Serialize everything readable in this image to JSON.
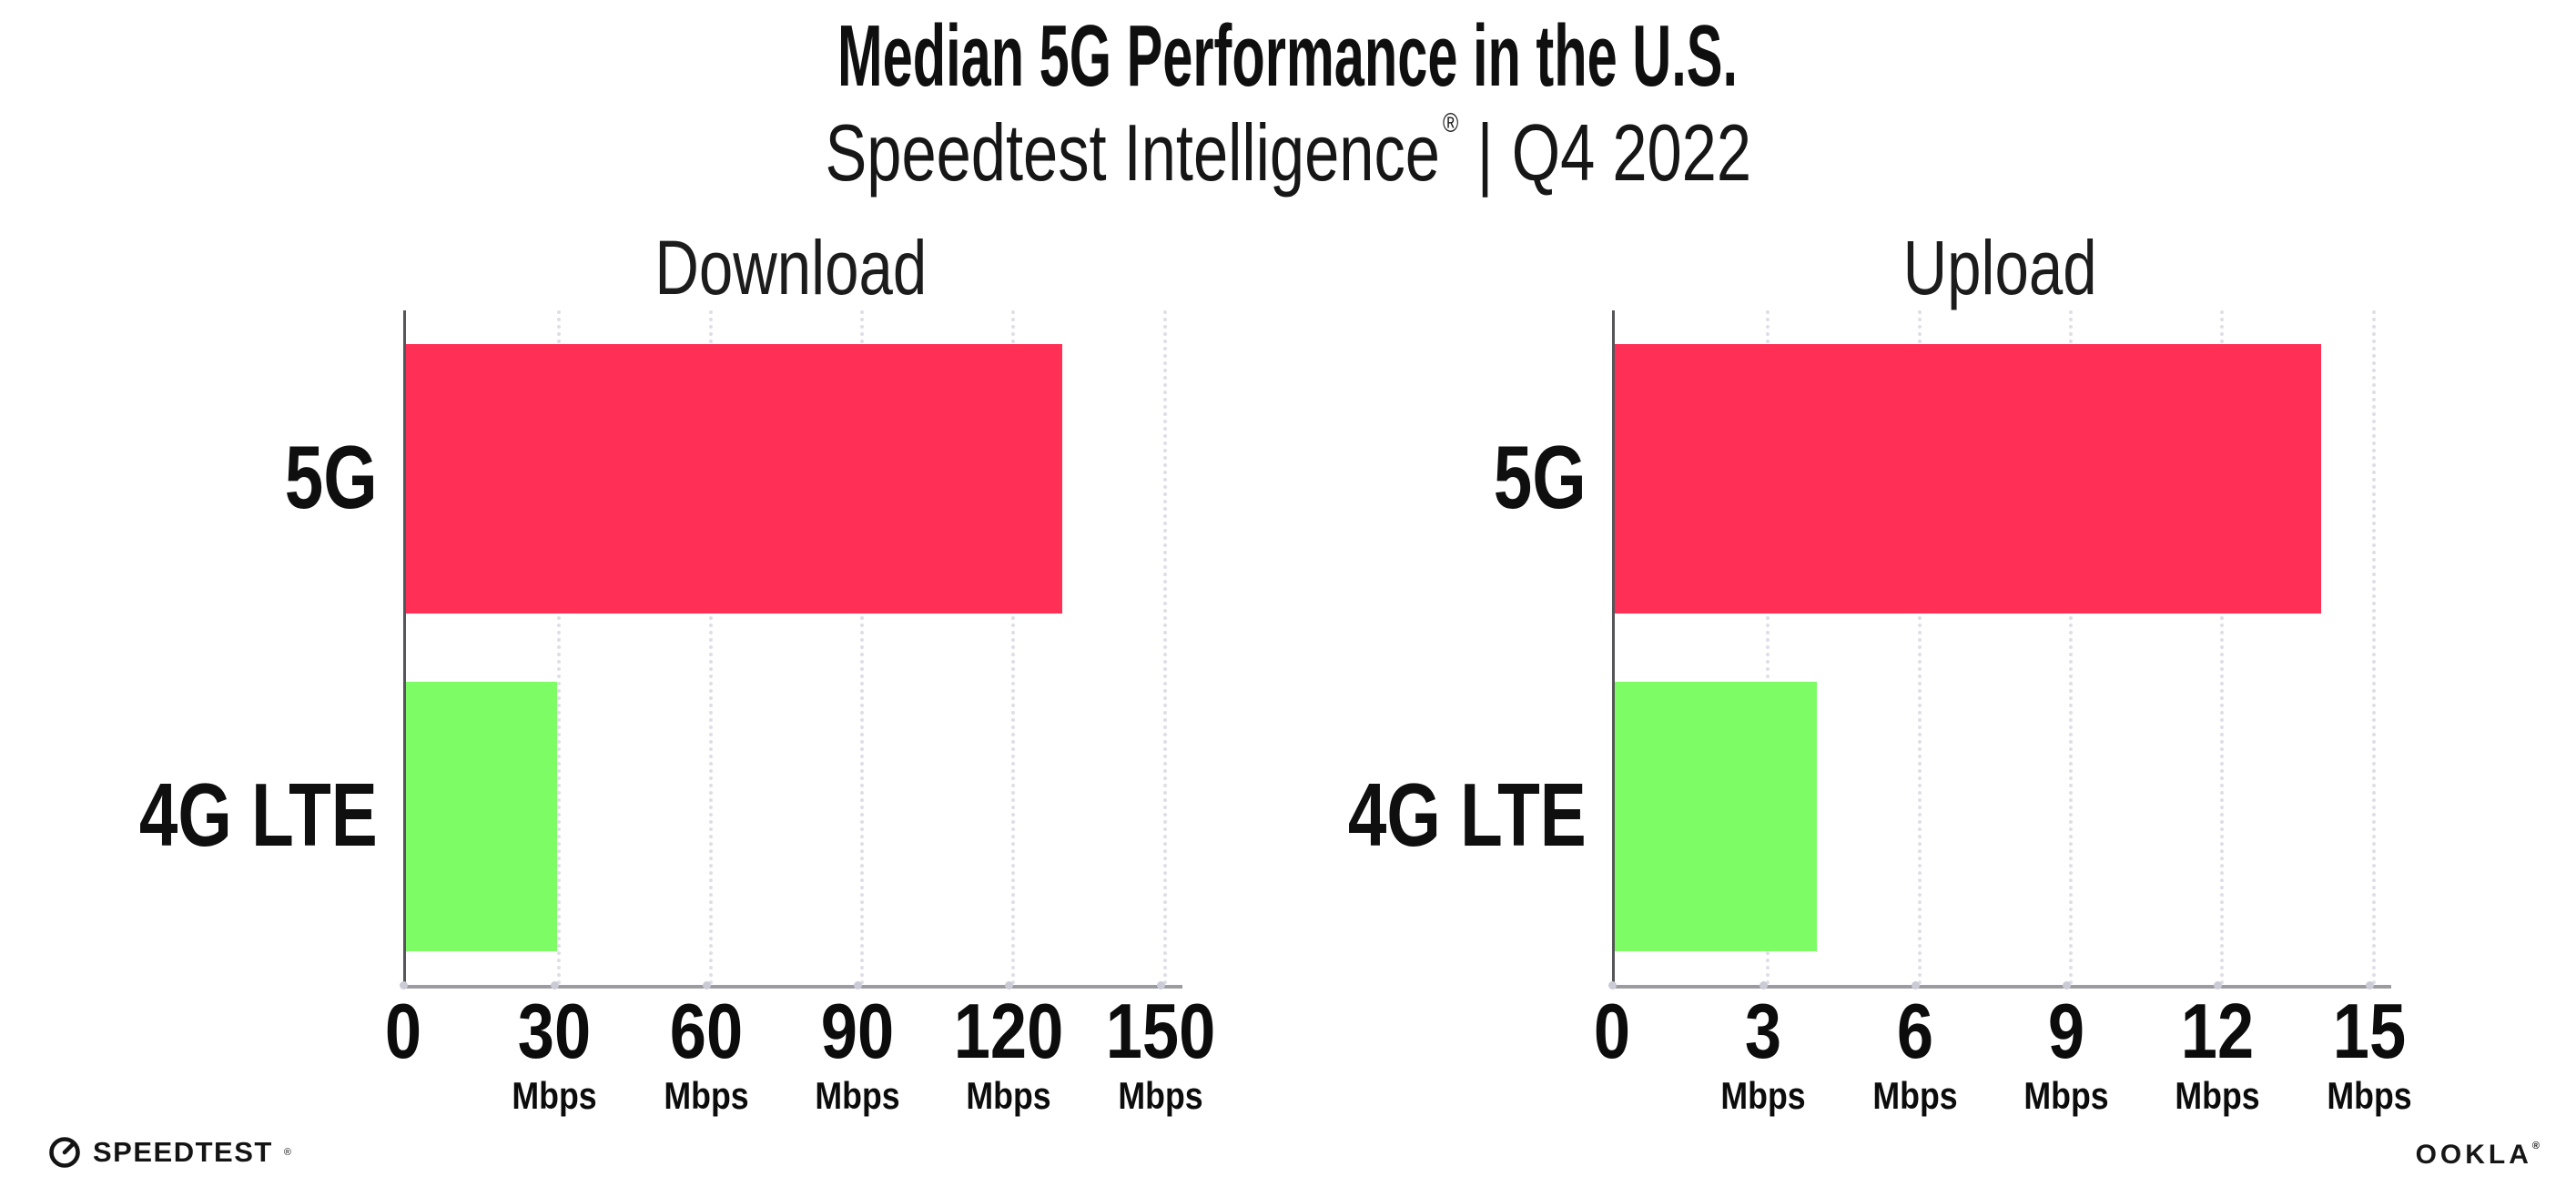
{
  "page": {
    "title": "Median 5G Performance in the U.S.",
    "subtitle": {
      "brand": "Speedtest Intelligence",
      "registered": "®",
      "separator": "|",
      "period": "Q4 2022"
    }
  },
  "chart_data": [
    {
      "type": "bar",
      "orientation": "horizontal",
      "title": "Download",
      "categories": [
        "5G",
        "4G LTE"
      ],
      "values": [
        130,
        30
      ],
      "unit": "Mbps",
      "value_colors": [
        "#FF2F56",
        "#7DFC66"
      ],
      "xlim": [
        0,
        150
      ],
      "xticks": [
        0,
        30,
        60,
        90,
        120,
        150
      ],
      "xtick_unit": "Mbps",
      "grid": "vertical-dotted",
      "legend": "none"
    },
    {
      "type": "bar",
      "orientation": "horizontal",
      "title": "Upload",
      "categories": [
        "5G",
        "4G LTE"
      ],
      "values": [
        14,
        4
      ],
      "unit": "Mbps",
      "value_colors": [
        "#FF2F56",
        "#7DFC66"
      ],
      "xlim": [
        0,
        15
      ],
      "xticks": [
        0,
        3,
        6,
        9,
        12,
        15
      ],
      "xtick_unit": "Mbps",
      "grid": "vertical-dotted",
      "legend": "none"
    }
  ],
  "footer": {
    "speedtest_logo_text": "SPEEDTEST",
    "speedtest_registered": "®",
    "ookla_logo_text": "OOKLA",
    "ookla_registered": "®"
  },
  "colors": {
    "bar_5g": "#FF2F56",
    "bar_4g_lte": "#7DFC66",
    "grid_dots": "#dedee8",
    "x_axis": "#9b9ba1",
    "y_axis": "#55555a",
    "text": "#0f0f10"
  }
}
